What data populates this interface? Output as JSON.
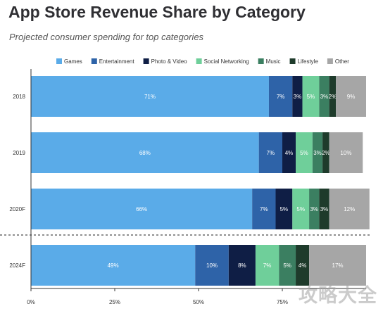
{
  "title": "App Store Revenue Share by Category",
  "subtitle": "Projected consumer spending for top categories",
  "watermark": "攻略大全",
  "chart_data": {
    "type": "bar",
    "orientation": "horizontal",
    "stacked": true,
    "categories": [
      "2018",
      "2019",
      "2020F",
      "2024F"
    ],
    "series": [
      {
        "name": "Games",
        "color": "#5aabe8",
        "values": [
          71,
          68,
          66,
          49
        ]
      },
      {
        "name": "Entertainment",
        "color": "#2e63a8",
        "values": [
          7,
          7,
          7,
          10
        ]
      },
      {
        "name": "Photo & Video",
        "color": "#0f1e45",
        "values": [
          3,
          4,
          5,
          8
        ]
      },
      {
        "name": "Social Networking",
        "color": "#6fcf9a",
        "values": [
          5,
          5,
          5,
          7
        ]
      },
      {
        "name": "Music",
        "color": "#3b7f61",
        "values": [
          3,
          3,
          3,
          5
        ]
      },
      {
        "name": "Lifestyle",
        "color": "#1e3b2b",
        "values": [
          2,
          2,
          3,
          4
        ]
      },
      {
        "name": "Other",
        "color": "#a6a6a6",
        "values": [
          9,
          10,
          12,
          17
        ]
      }
    ],
    "value_labels": [
      [
        "71%",
        "7%",
        "3%",
        "5%",
        "3%",
        "2%",
        "9%"
      ],
      [
        "68%",
        "7%",
        "4%",
        "5%",
        "3%",
        "2%",
        "10%"
      ],
      [
        "66%",
        "7%",
        "5%",
        "5%",
        "3%",
        "3%",
        "12%"
      ],
      [
        "49%",
        "10%",
        "8%",
        "7%",
        "5%",
        "4%",
        "17%"
      ]
    ],
    "xlim": [
      0,
      100
    ],
    "x_ticks": [
      "0%",
      "25%",
      "50%",
      "75%"
    ],
    "legend_position": "top",
    "separator_before_category": "2024F"
  }
}
